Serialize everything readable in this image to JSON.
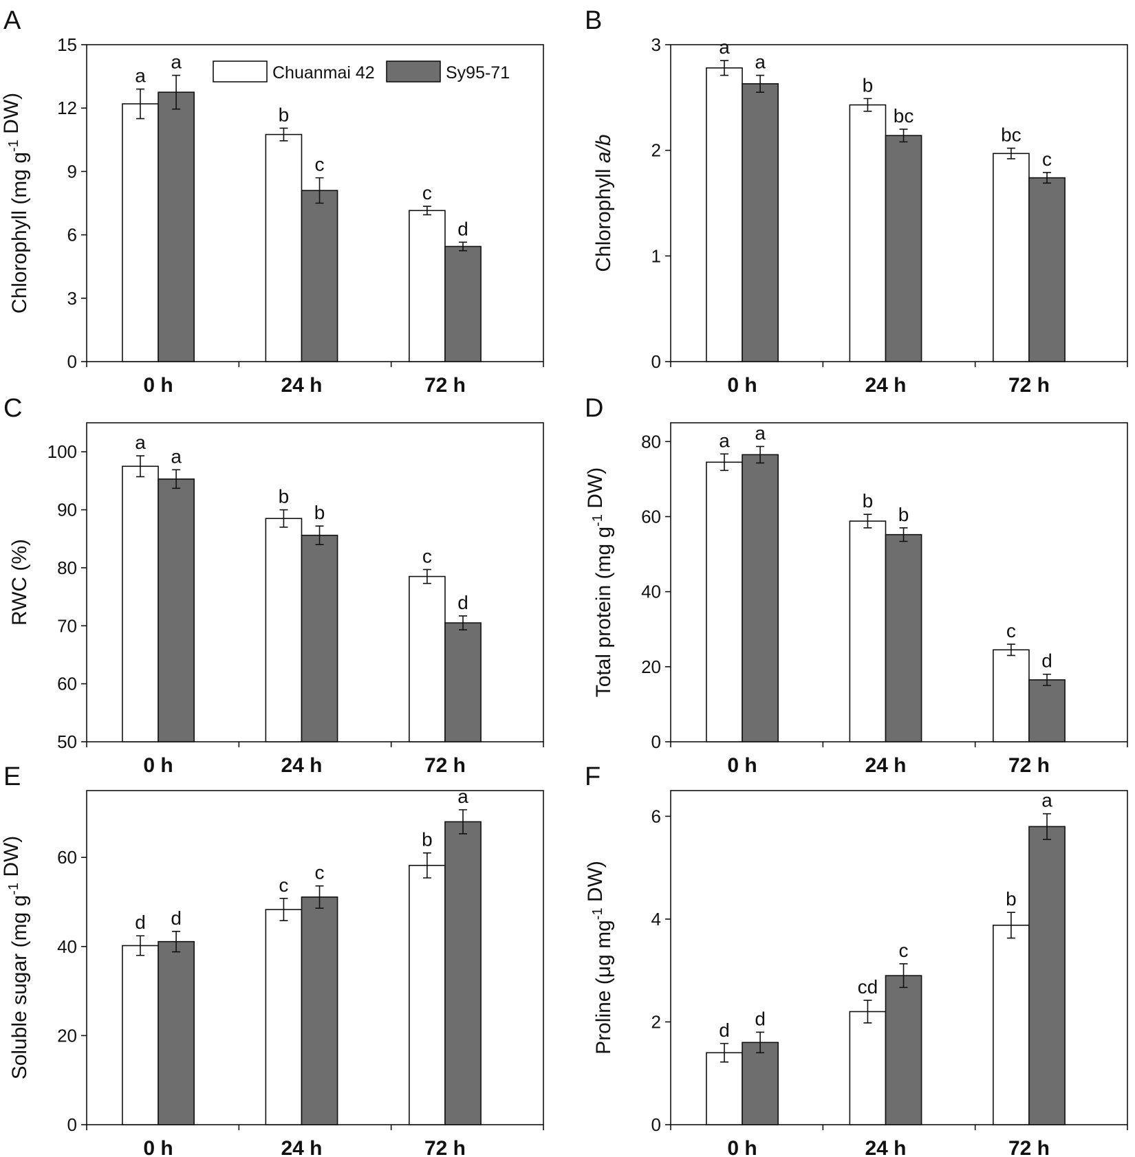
{
  "colors": {
    "series1": "#ffffff",
    "series2": "#6e6e6e",
    "axis": "#111111"
  },
  "legend": [
    {
      "name": "Chuanmai 42",
      "color": "#ffffff"
    },
    {
      "name": "Sy95-71",
      "color": "#6e6e6e"
    }
  ],
  "chart_data": [
    {
      "panel": "A",
      "type": "bar",
      "categories": [
        "0 h",
        "24 h",
        "72 h"
      ],
      "ylabel": "Chlorophyll (mg g⁻¹ DW)",
      "ylim": [
        0,
        15
      ],
      "yticks": [
        0,
        3,
        6,
        9,
        12,
        15
      ],
      "show_legend": true,
      "series": [
        {
          "name": "Chuanmai 42",
          "values": [
            12.2,
            10.75,
            7.15
          ],
          "errors": [
            0.7,
            0.3,
            0.2
          ],
          "labels": [
            "a",
            "b",
            "c"
          ]
        },
        {
          "name": "Sy95-71",
          "values": [
            12.75,
            8.1,
            5.45
          ],
          "errors": [
            0.8,
            0.6,
            0.2
          ],
          "labels": [
            "a",
            "c",
            "d"
          ]
        }
      ]
    },
    {
      "panel": "B",
      "type": "bar",
      "categories": [
        "0 h",
        "24 h",
        "72 h"
      ],
      "ylabel": "Chlorophyll a/b",
      "ylim": [
        0,
        3
      ],
      "yticks": [
        0,
        1,
        2,
        3
      ],
      "series": [
        {
          "name": "Chuanmai 42",
          "values": [
            2.78,
            2.43,
            1.97
          ],
          "errors": [
            0.07,
            0.06,
            0.05
          ],
          "labels": [
            "a",
            "b",
            "bc"
          ]
        },
        {
          "name": "Sy95-71",
          "values": [
            2.63,
            2.14,
            1.74
          ],
          "errors": [
            0.08,
            0.06,
            0.05
          ],
          "labels": [
            "a",
            "bc",
            "c"
          ]
        }
      ]
    },
    {
      "panel": "C",
      "type": "bar",
      "categories": [
        "0 h",
        "24 h",
        "72 h"
      ],
      "ylabel": "RWC (%)",
      "ylim": [
        50,
        105
      ],
      "yticks": [
        50,
        60,
        70,
        80,
        90,
        100
      ],
      "series": [
        {
          "name": "Chuanmai 42",
          "values": [
            97.5,
            88.5,
            78.5
          ],
          "errors": [
            1.8,
            1.5,
            1.2
          ],
          "labels": [
            "a",
            "b",
            "c"
          ]
        },
        {
          "name": "Sy95-71",
          "values": [
            95.3,
            85.6,
            70.5
          ],
          "errors": [
            1.6,
            1.6,
            1.2
          ],
          "labels": [
            "a",
            "b",
            "d"
          ]
        }
      ]
    },
    {
      "panel": "D",
      "type": "bar",
      "categories": [
        "0 h",
        "24 h",
        "72 h"
      ],
      "ylabel": "Total protein (mg g⁻¹ DW)",
      "ylim": [
        0,
        85
      ],
      "yticks": [
        0,
        20,
        40,
        60,
        80
      ],
      "series": [
        {
          "name": "Chuanmai 42",
          "values": [
            74.5,
            58.8,
            24.5
          ],
          "errors": [
            2.2,
            1.8,
            1.5
          ],
          "labels": [
            "a",
            "b",
            "c"
          ]
        },
        {
          "name": "Sy95-71",
          "values": [
            76.5,
            55.2,
            16.5
          ],
          "errors": [
            2.2,
            1.8,
            1.5
          ],
          "labels": [
            "a",
            "b",
            "d"
          ]
        }
      ]
    },
    {
      "panel": "E",
      "type": "bar",
      "categories": [
        "0 h",
        "24 h",
        "72 h"
      ],
      "ylabel": "Soluble sugar (mg g⁻¹ DW)",
      "ylim": [
        0,
        75
      ],
      "yticks": [
        0,
        20,
        40,
        60
      ],
      "series": [
        {
          "name": "Chuanmai 42",
          "values": [
            40.2,
            48.3,
            58.2
          ],
          "errors": [
            2.2,
            2.5,
            2.8
          ],
          "labels": [
            "d",
            "c",
            "b"
          ]
        },
        {
          "name": "Sy95-71",
          "values": [
            41.1,
            51.1,
            68.0
          ],
          "errors": [
            2.3,
            2.5,
            2.7
          ],
          "labels": [
            "d",
            "c",
            "a"
          ]
        }
      ]
    },
    {
      "panel": "F",
      "type": "bar",
      "categories": [
        "0 h",
        "24 h",
        "72 h"
      ],
      "ylabel": "Proline (μg mg⁻¹ DW)",
      "ylim": [
        0,
        6.5
      ],
      "yticks": [
        0,
        2,
        4,
        6
      ],
      "series": [
        {
          "name": "Chuanmai 42",
          "values": [
            1.4,
            2.2,
            3.88
          ],
          "errors": [
            0.18,
            0.22,
            0.25
          ],
          "labels": [
            "d",
            "cd",
            "b"
          ]
        },
        {
          "name": "Sy95-71",
          "values": [
            1.6,
            2.9,
            5.8
          ],
          "errors": [
            0.2,
            0.23,
            0.25
          ],
          "labels": [
            "d",
            "c",
            "a"
          ]
        }
      ]
    }
  ]
}
